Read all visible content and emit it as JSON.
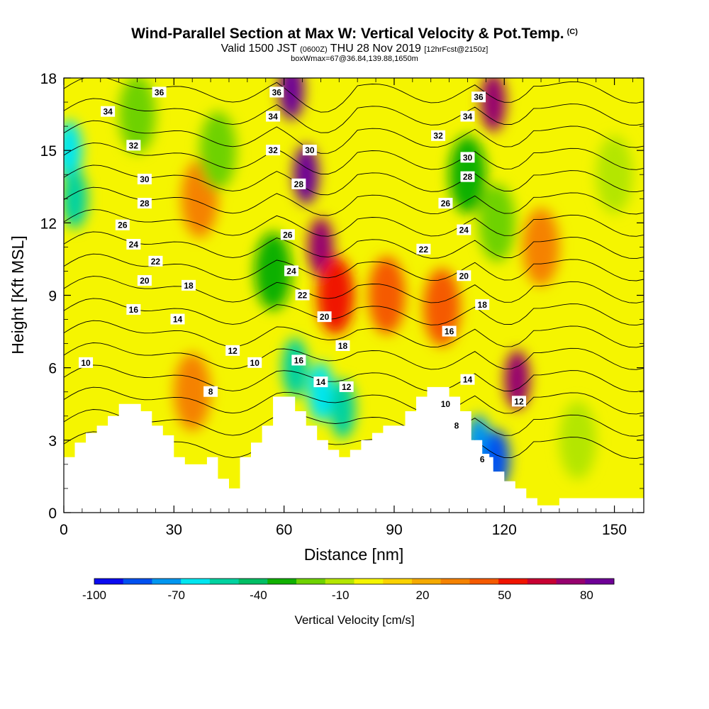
{
  "header": {
    "title": "Wind-Parallel Section at Max W: Vertical Velocity & Pot.Temp.",
    "copyright": "(C)",
    "valid_prefix": "Valid 1500 JST",
    "valid_utc": "(0600Z)",
    "valid_date": "THU 28 Nov 2019",
    "forecast": "[12hrFcst@2150z]",
    "box_info": "boxWmax=67@36.84,139.88,1650m"
  },
  "colors": {
    "plot_background": "#f5f500",
    "terrain": "#ffffff",
    "contour_line": "#000000",
    "colorbar": [
      "#0a0af0",
      "#0050f0",
      "#0096f0",
      "#00e6f0",
      "#00d2a0",
      "#00be64",
      "#10b000",
      "#6ed200",
      "#b4e600",
      "#f5f500",
      "#fad200",
      "#f5aa00",
      "#f58200",
      "#f55a00",
      "#f01400",
      "#c80032",
      "#96006e",
      "#6e0096"
    ]
  },
  "chart_data": {
    "type": "heatmap",
    "xlabel": "Distance [nm]",
    "ylabel": "Height [Kft MSL]",
    "xlim": [
      0,
      158
    ],
    "ylim": [
      0,
      18
    ],
    "xticks": [
      0,
      30,
      60,
      90,
      120,
      150
    ],
    "yticks": [
      0,
      3,
      6,
      9,
      12,
      15,
      18
    ],
    "colorbar": {
      "title": "Vertical Velocity [cm/s]",
      "bounds": [
        -100,
        -90,
        -80,
        -70,
        -60,
        -50,
        -40,
        -30,
        -20,
        -10,
        0,
        10,
        20,
        30,
        40,
        50,
        60,
        70,
        80,
        90
      ],
      "tick_labels": [
        -100,
        -70,
        -40,
        -10,
        20,
        50,
        80
      ]
    },
    "terrain_profile": {
      "x": [
        0,
        3,
        3,
        6,
        6,
        9,
        9,
        12,
        12,
        15,
        15,
        21,
        21,
        24,
        24,
        27,
        27,
        30,
        30,
        33,
        33,
        39,
        39,
        42,
        42,
        45,
        45,
        48,
        48,
        51,
        51,
        54,
        54,
        57,
        57,
        63,
        63,
        66,
        66,
        69,
        69,
        72,
        72,
        75,
        75,
        78,
        78,
        81,
        81,
        84,
        84,
        87,
        87,
        93,
        93,
        96,
        96,
        99,
        99,
        105,
        105,
        108,
        108,
        111,
        111,
        114,
        114,
        117,
        117,
        120,
        120,
        123,
        123,
        126,
        126,
        129,
        129,
        135,
        135,
        158
      ],
      "height": [
        2.3,
        2.3,
        2.9,
        2.9,
        3.3,
        3.3,
        3.6,
        3.6,
        4.0,
        4.0,
        4.5,
        4.5,
        4.2,
        4.2,
        3.6,
        3.6,
        3.2,
        3.2,
        2.3,
        2.3,
        2.0,
        2.0,
        2.3,
        2.3,
        1.4,
        1.4,
        1.0,
        1.0,
        2.3,
        2.3,
        2.9,
        2.9,
        3.6,
        3.6,
        4.8,
        4.8,
        4.2,
        4.2,
        3.6,
        3.6,
        3.0,
        3.0,
        2.6,
        2.6,
        2.3,
        2.3,
        2.6,
        2.6,
        3.0,
        3.0,
        3.3,
        3.3,
        3.6,
        3.6,
        4.2,
        4.2,
        4.8,
        4.8,
        5.2,
        5.2,
        4.8,
        4.8,
        4.2,
        4.2,
        3.0,
        3.0,
        2.3,
        2.3,
        1.7,
        1.7,
        1.3,
        1.3,
        1.0,
        1.0,
        0.6,
        0.6,
        0.3,
        0.3,
        0.6,
        0.6
      ]
    },
    "vertical_velocity_features": [
      {
        "x": 62.0,
        "y": 17.5,
        "value": 80
      },
      {
        "x": 66.0,
        "y": 14.0,
        "value": 80
      },
      {
        "x": 70.0,
        "y": 11.0,
        "value": 60
      },
      {
        "x": 74.0,
        "y": 9.0,
        "value": 40
      },
      {
        "x": 117.0,
        "y": 17.0,
        "value": 60
      },
      {
        "x": 123.5,
        "y": 5.5,
        "value": 60
      },
      {
        "x": 103.0,
        "y": 8.5,
        "value": 30
      },
      {
        "x": 88.0,
        "y": 9.0,
        "value": 30
      },
      {
        "x": 35.0,
        "y": 5.0,
        "value": 20
      },
      {
        "x": 37.0,
        "y": 13.0,
        "value": 20
      },
      {
        "x": 1.5,
        "y": 15.0,
        "value": -70
      },
      {
        "x": 3.0,
        "y": 13.0,
        "value": -60
      },
      {
        "x": 63.0,
        "y": 6.0,
        "value": -60
      },
      {
        "x": 70.0,
        "y": 5.0,
        "value": -70
      },
      {
        "x": 76.0,
        "y": 4.3,
        "value": -60
      },
      {
        "x": 113.0,
        "y": 2.8,
        "value": -80
      },
      {
        "x": 118.0,
        "y": 2.2,
        "value": -90
      },
      {
        "x": 42.0,
        "y": 15.0,
        "value": -30
      },
      {
        "x": 57.0,
        "y": 10.0,
        "value": -40
      },
      {
        "x": 110.0,
        "y": 14.0,
        "value": -40
      },
      {
        "x": 118.0,
        "y": 12.0,
        "value": -30
      },
      {
        "x": 140.0,
        "y": 3.0,
        "value": -20
      },
      {
        "x": 150.0,
        "y": 14.0,
        "value": -20
      },
      {
        "x": 20.0,
        "y": 16.5,
        "value": -30
      },
      {
        "x": 130.0,
        "y": 11.0,
        "value": 20
      }
    ],
    "potential_temperature_contours": {
      "levels": [
        4,
        6,
        8,
        10,
        12,
        14,
        16,
        18,
        20,
        22,
        24,
        26,
        28,
        30,
        32,
        34,
        36
      ],
      "labels": [
        {
          "text": "36",
          "x": 26,
          "y": 17.4
        },
        {
          "text": "34",
          "x": 12,
          "y": 16.6
        },
        {
          "text": "32",
          "x": 19,
          "y": 15.2
        },
        {
          "text": "30",
          "x": 22,
          "y": 13.8
        },
        {
          "text": "28",
          "x": 22,
          "y": 12.8
        },
        {
          "text": "26",
          "x": 16,
          "y": 11.9
        },
        {
          "text": "24",
          "x": 19,
          "y": 11.1
        },
        {
          "text": "22",
          "x": 25,
          "y": 10.4
        },
        {
          "text": "20",
          "x": 22,
          "y": 9.6
        },
        {
          "text": "18",
          "x": 34,
          "y": 9.4
        },
        {
          "text": "16",
          "x": 19,
          "y": 8.4
        },
        {
          "text": "14",
          "x": 31,
          "y": 8.0
        },
        {
          "text": "12",
          "x": 46,
          "y": 6.7
        },
        {
          "text": "10",
          "x": 6,
          "y": 6.2
        },
        {
          "text": "10",
          "x": 52,
          "y": 6.2
        },
        {
          "text": "8",
          "x": 40,
          "y": 5.0
        },
        {
          "text": "36",
          "x": 58,
          "y": 17.4
        },
        {
          "text": "34",
          "x": 57,
          "y": 16.4
        },
        {
          "text": "32",
          "x": 57,
          "y": 15.0
        },
        {
          "text": "30",
          "x": 67,
          "y": 15.0
        },
        {
          "text": "28",
          "x": 64,
          "y": 13.6
        },
        {
          "text": "26",
          "x": 61,
          "y": 11.5
        },
        {
          "text": "24",
          "x": 62,
          "y": 10.0
        },
        {
          "text": "22",
          "x": 65,
          "y": 9.0
        },
        {
          "text": "20",
          "x": 71,
          "y": 8.1
        },
        {
          "text": "18",
          "x": 76,
          "y": 6.9
        },
        {
          "text": "16",
          "x": 64,
          "y": 6.3
        },
        {
          "text": "14",
          "x": 70,
          "y": 5.4
        },
        {
          "text": "12",
          "x": 77,
          "y": 5.2
        },
        {
          "text": "32",
          "x": 102,
          "y": 15.6
        },
        {
          "text": "22",
          "x": 98,
          "y": 10.9
        },
        {
          "text": "36",
          "x": 113,
          "y": 17.2
        },
        {
          "text": "34",
          "x": 110,
          "y": 16.4
        },
        {
          "text": "30",
          "x": 110,
          "y": 14.7
        },
        {
          "text": "28",
          "x": 110,
          "y": 13.9
        },
        {
          "text": "26",
          "x": 104,
          "y": 12.8
        },
        {
          "text": "24",
          "x": 109,
          "y": 11.7
        },
        {
          "text": "20",
          "x": 109,
          "y": 9.8
        },
        {
          "text": "18",
          "x": 114,
          "y": 8.6
        },
        {
          "text": "16",
          "x": 105,
          "y": 7.5
        },
        {
          "text": "14",
          "x": 110,
          "y": 5.5
        },
        {
          "text": "12",
          "x": 124,
          "y": 4.6
        },
        {
          "text": "10",
          "x": 104,
          "y": 4.5
        },
        {
          "text": "8",
          "x": 107,
          "y": 3.6
        },
        {
          "text": "6",
          "x": 114,
          "y": 2.2
        }
      ]
    }
  }
}
